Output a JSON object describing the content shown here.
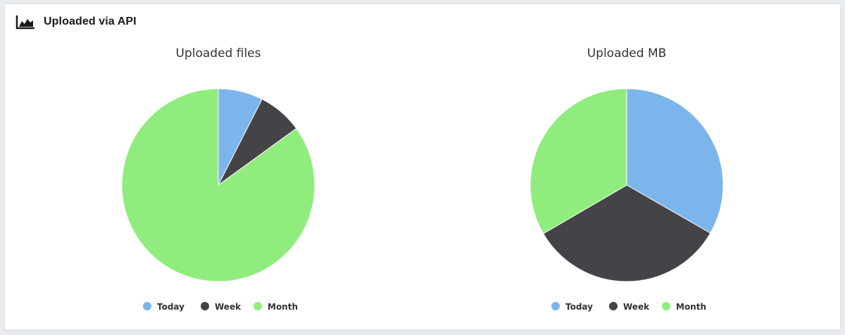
{
  "panel": {
    "title": "Uploaded via API",
    "icon": "area-chart-icon"
  },
  "colors": {
    "today": "#7cb5ec",
    "week": "#434348",
    "month": "#90ed7d"
  },
  "chart_data": [
    {
      "type": "pie",
      "title": "Uploaded files",
      "legend_position": "bottom",
      "categories": [
        "Today",
        "Week",
        "Month"
      ],
      "values": [
        7.5,
        7.5,
        85
      ],
      "colors": [
        "#7cb5ec",
        "#434348",
        "#90ed7d"
      ]
    },
    {
      "type": "pie",
      "title": "Uploaded MB",
      "legend_position": "bottom",
      "categories": [
        "Today",
        "Week",
        "Month"
      ],
      "values": [
        33.3,
        33.3,
        33.4
      ],
      "colors": [
        "#7cb5ec",
        "#434348",
        "#90ed7d"
      ]
    }
  ]
}
